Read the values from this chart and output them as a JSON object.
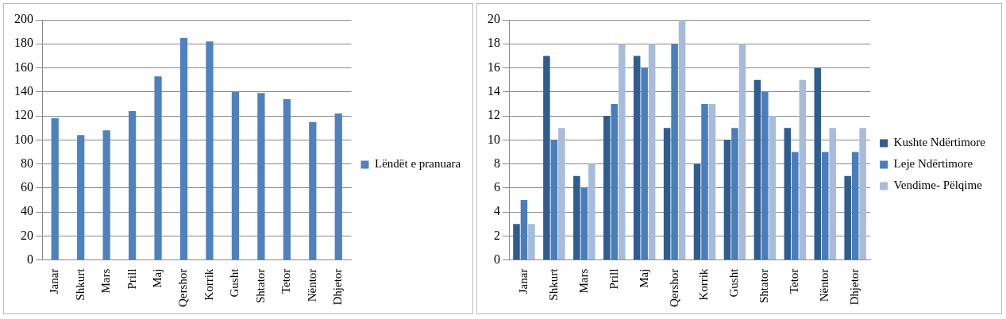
{
  "chart_data": [
    {
      "type": "bar",
      "categories": [
        "Janar",
        "Shkurt",
        "Mars",
        "Prill",
        "Maj",
        "Qershor",
        "Korrik",
        "Gusht",
        "Shtator",
        "Tetor",
        "Nëntor",
        "Dhjetor"
      ],
      "series": [
        {
          "name": "Lëndët e pranuara",
          "color": "#4f81bd",
          "values": [
            118,
            104,
            108,
            124,
            153,
            185,
            182,
            140,
            139,
            134,
            115,
            122
          ]
        }
      ],
      "ylim": [
        0,
        200
      ],
      "yticks": [
        0,
        20,
        40,
        60,
        80,
        100,
        120,
        140,
        160,
        180,
        200
      ],
      "grid": "y",
      "legend": "right"
    },
    {
      "type": "bar",
      "categories": [
        "Janar",
        "Shkurt",
        "Mars",
        "Prill",
        "Maj",
        "Qershor",
        "Korrik",
        "Gusht",
        "Shtator",
        "Tetor",
        "Nëntor",
        "Dhjetor"
      ],
      "series": [
        {
          "name": "Kushte Ndërtimore",
          "color": "#2f5d8f",
          "values": [
            3,
            17,
            7,
            12,
            17,
            11,
            8,
            10,
            15,
            11,
            16,
            7
          ]
        },
        {
          "name": "Leje Ndërtimore",
          "color": "#4a7ebb",
          "values": [
            5,
            10,
            6,
            13,
            16,
            18,
            13,
            11,
            14,
            9,
            9,
            9
          ]
        },
        {
          "name": "Vendime- Pëlqime",
          "color": "#a8bcd9",
          "values": [
            3,
            11,
            8,
            18,
            18,
            20,
            13,
            18,
            12,
            15,
            11,
            11
          ]
        }
      ],
      "ylim": [
        0,
        20
      ],
      "yticks": [
        0,
        2,
        4,
        6,
        8,
        10,
        12,
        14,
        16,
        18,
        20
      ],
      "grid": "y",
      "legend": "right"
    }
  ]
}
